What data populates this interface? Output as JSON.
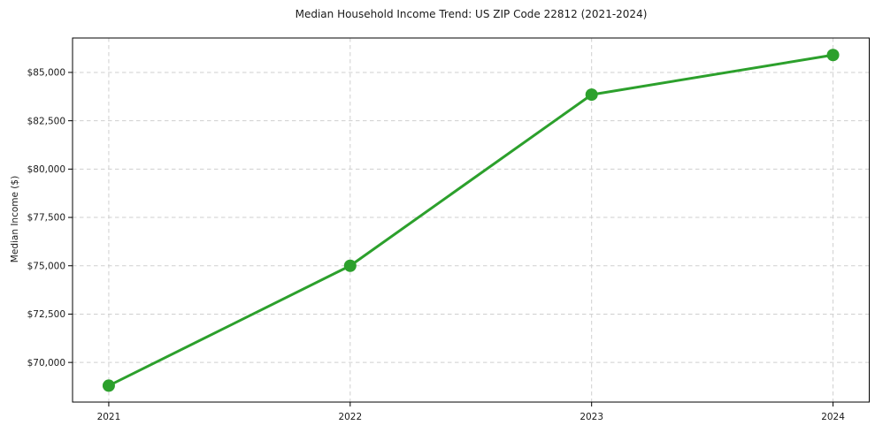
{
  "chart_data": {
    "type": "line",
    "title": "Median Household Income Trend: US ZIP Code 22812 (2021-2024)",
    "xlabel": "",
    "ylabel": "Median Income ($)",
    "x": [
      2021,
      2022,
      2023,
      2024
    ],
    "x_tick_labels": [
      "2021",
      "2022",
      "2023",
      "2024"
    ],
    "y_ticks": [
      70000,
      72500,
      75000,
      77500,
      80000,
      82500,
      85000
    ],
    "y_tick_labels": [
      "$70,000",
      "$72,500",
      "$75,000",
      "$77,500",
      "$80,000",
      "$82,500",
      "$85,000"
    ],
    "series": [
      {
        "name": "Median Household Income",
        "values": [
          68800,
          75000,
          83850,
          85900
        ]
      }
    ],
    "xlim": [
      2020.85,
      2024.15
    ],
    "ylim": [
      67950,
      86780
    ],
    "grid": true,
    "legend": "none",
    "colors": {
      "line": "#2ca02c",
      "marker": "#2ca02c",
      "grid": "#cfcfcf",
      "spine": "#000000",
      "text": "#1a1a1a",
      "background": "#ffffff"
    }
  }
}
